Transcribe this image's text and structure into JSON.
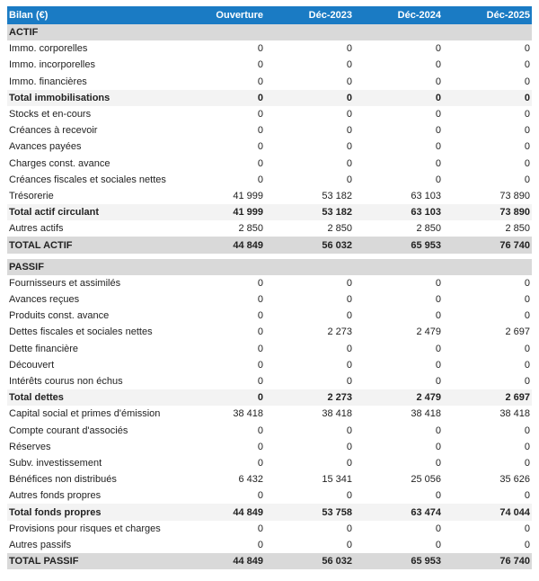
{
  "header": {
    "title": "Bilan (€)",
    "columns": [
      "Ouverture",
      "Déc-2023",
      "Déc-2024",
      "Déc-2025"
    ]
  },
  "colors": {
    "header_bg": "#1a7bc4",
    "section_bg": "#d9d9d9",
    "total_bg": "#f3f3f3"
  },
  "actif": {
    "title": "ACTIF",
    "rows": [
      {
        "label": "Immo. corporelles",
        "type": "normal",
        "values": [
          "0",
          "0",
          "0",
          "0"
        ]
      },
      {
        "label": "Immo. incorporelles",
        "type": "normal",
        "values": [
          "0",
          "0",
          "0",
          "0"
        ]
      },
      {
        "label": "Immo. financières",
        "type": "normal",
        "values": [
          "0",
          "0",
          "0",
          "0"
        ]
      },
      {
        "label": "Total immobilisations",
        "type": "tot",
        "values": [
          "0",
          "0",
          "0",
          "0"
        ]
      },
      {
        "label": "Stocks et en-cours",
        "type": "normal",
        "values": [
          "0",
          "0",
          "0",
          "0"
        ]
      },
      {
        "label": "Créances à recevoir",
        "type": "normal",
        "values": [
          "0",
          "0",
          "0",
          "0"
        ]
      },
      {
        "label": "Avances payées",
        "type": "normal",
        "values": [
          "0",
          "0",
          "0",
          "0"
        ]
      },
      {
        "label": "Charges const. avance",
        "type": "normal",
        "values": [
          "0",
          "0",
          "0",
          "0"
        ]
      },
      {
        "label": "Créances fiscales et sociales nettes",
        "type": "normal",
        "values": [
          "0",
          "0",
          "0",
          "0"
        ]
      },
      {
        "label": "Trésorerie",
        "type": "normal",
        "values": [
          "41 999",
          "53 182",
          "63 103",
          "73 890"
        ]
      },
      {
        "label": "Total actif circulant",
        "type": "tot",
        "values": [
          "41 999",
          "53 182",
          "63 103",
          "73 890"
        ]
      },
      {
        "label": "Autres actifs",
        "type": "normal",
        "values": [
          "2 850",
          "2 850",
          "2 850",
          "2 850"
        ]
      },
      {
        "label": "TOTAL ACTIF",
        "type": "grand",
        "values": [
          "44 849",
          "56 032",
          "65 953",
          "76 740"
        ]
      }
    ]
  },
  "passif": {
    "title": "PASSIF",
    "rows": [
      {
        "label": "Fournisseurs et assimilés",
        "type": "normal",
        "values": [
          "0",
          "0",
          "0",
          "0"
        ]
      },
      {
        "label": "Avances reçues",
        "type": "normal",
        "values": [
          "0",
          "0",
          "0",
          "0"
        ]
      },
      {
        "label": "Produits const. avance",
        "type": "normal",
        "values": [
          "0",
          "0",
          "0",
          "0"
        ]
      },
      {
        "label": "Dettes fiscales et sociales nettes",
        "type": "normal",
        "values": [
          "0",
          "2 273",
          "2 479",
          "2 697"
        ]
      },
      {
        "label": "Dette financière",
        "type": "normal",
        "values": [
          "0",
          "0",
          "0",
          "0"
        ]
      },
      {
        "label": "Découvert",
        "type": "normal",
        "values": [
          "0",
          "0",
          "0",
          "0"
        ]
      },
      {
        "label": "Intérêts courus non échus",
        "type": "normal",
        "values": [
          "0",
          "0",
          "0",
          "0"
        ]
      },
      {
        "label": "Total dettes",
        "type": "tot",
        "values": [
          "0",
          "2 273",
          "2 479",
          "2 697"
        ]
      },
      {
        "label": "Capital social et primes d'émission",
        "type": "normal",
        "values": [
          "38 418",
          "38 418",
          "38 418",
          "38 418"
        ]
      },
      {
        "label": "Compte courant d'associés",
        "type": "normal",
        "values": [
          "0",
          "0",
          "0",
          "0"
        ]
      },
      {
        "label": "Réserves",
        "type": "normal",
        "values": [
          "0",
          "0",
          "0",
          "0"
        ]
      },
      {
        "label": "Subv. investissement",
        "type": "normal",
        "values": [
          "0",
          "0",
          "0",
          "0"
        ]
      },
      {
        "label": "Bénéfices non distribués",
        "type": "normal",
        "values": [
          "6 432",
          "15 341",
          "25 056",
          "35 626"
        ]
      },
      {
        "label": "Autres fonds propres",
        "type": "normal",
        "values": [
          "0",
          "0",
          "0",
          "0"
        ]
      },
      {
        "label": "Total fonds propres",
        "type": "tot",
        "values": [
          "44 849",
          "53 758",
          "63 474",
          "74 044"
        ]
      },
      {
        "label": "Provisions pour risques et charges",
        "type": "normal",
        "values": [
          "0",
          "0",
          "0",
          "0"
        ]
      },
      {
        "label": "Autres passifs",
        "type": "normal",
        "values": [
          "0",
          "0",
          "0",
          "0"
        ]
      },
      {
        "label": "TOTAL PASSIF",
        "type": "grand",
        "values": [
          "44 849",
          "56 032",
          "65 953",
          "76 740"
        ]
      }
    ]
  }
}
